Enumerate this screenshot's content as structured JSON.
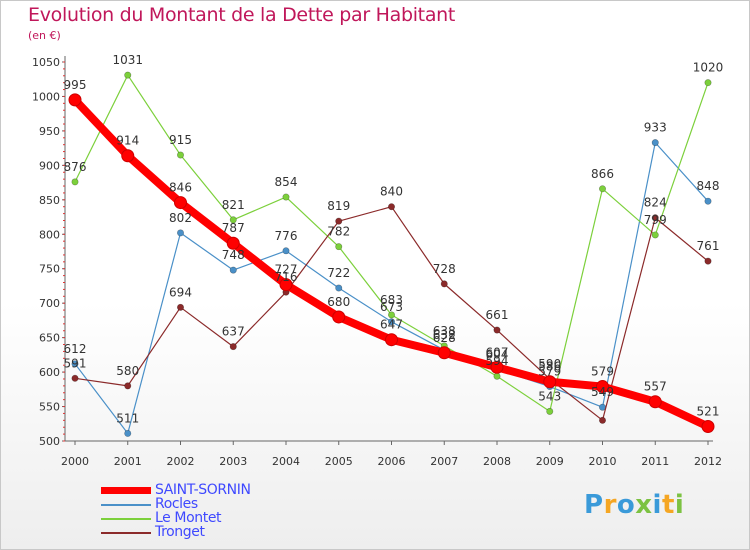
{
  "title": "Evolution du Montant de la Dette par Habitant",
  "subtitle": "(en €)",
  "logo": {
    "text": "Proxiti",
    "colors": [
      "#3a9ad9",
      "#f5a623",
      "#3a9ad9",
      "#7cc242",
      "#3a9ad9",
      "#f5a623",
      "#7cc242"
    ]
  },
  "chart_data": {
    "type": "line",
    "x": [
      "2000",
      "2001",
      "2002",
      "2003",
      "2004",
      "2005",
      "2006",
      "2007",
      "2008",
      "2009",
      "2010",
      "2011",
      "2012"
    ],
    "ylim": [
      500,
      1050
    ],
    "yticks": [
      "500",
      "550",
      "600",
      "650",
      "700",
      "750",
      "800",
      "850",
      "900",
      "950",
      "1000",
      "1050"
    ],
    "grid": false,
    "legend_position": "bottom-left",
    "series": [
      {
        "name": "SAINT-SORNIN",
        "color": "#ff0000",
        "values": [
          995,
          914,
          846,
          787,
          727,
          680,
          647,
          628,
          607,
          586,
          579,
          557,
          521
        ]
      },
      {
        "name": "Rocles",
        "color": "#4a90c8",
        "values": [
          612,
          511,
          802,
          748,
          776,
          722,
          673,
          632,
          604,
          579,
          549,
          933,
          848
        ]
      },
      {
        "name": "Le Montet",
        "color": "#7cd03b",
        "values": [
          876,
          1031,
          915,
          821,
          854,
          782,
          683,
          638,
          594,
          543,
          866,
          799,
          1020
        ]
      },
      {
        "name": "Tronget",
        "color": "#8b2a2a",
        "values": [
          591,
          580,
          694,
          637,
          716,
          819,
          840,
          728,
          661,
          590,
          530,
          824,
          761
        ]
      }
    ],
    "point_labels": {
      "SAINT-SORNIN": [
        "995",
        "914",
        "846",
        "787",
        "727",
        "680",
        "647",
        "628",
        "607",
        "586",
        "579",
        "557",
        "521"
      ],
      "Rocles": [
        "612",
        "511",
        "802",
        "748",
        "776",
        "722",
        "673",
        "632",
        "604",
        "579",
        "549",
        "933",
        "848"
      ],
      "Le Montet": [
        "876",
        "1031",
        "915",
        "821",
        "854",
        "782",
        "683",
        "638",
        "594",
        "543",
        "866",
        "799",
        "1020"
      ],
      "Tronget": [
        "591",
        "580",
        "694",
        "637",
        "716",
        "819",
        "840",
        "728",
        "661",
        "590",
        "",
        "824",
        "761"
      ]
    }
  }
}
